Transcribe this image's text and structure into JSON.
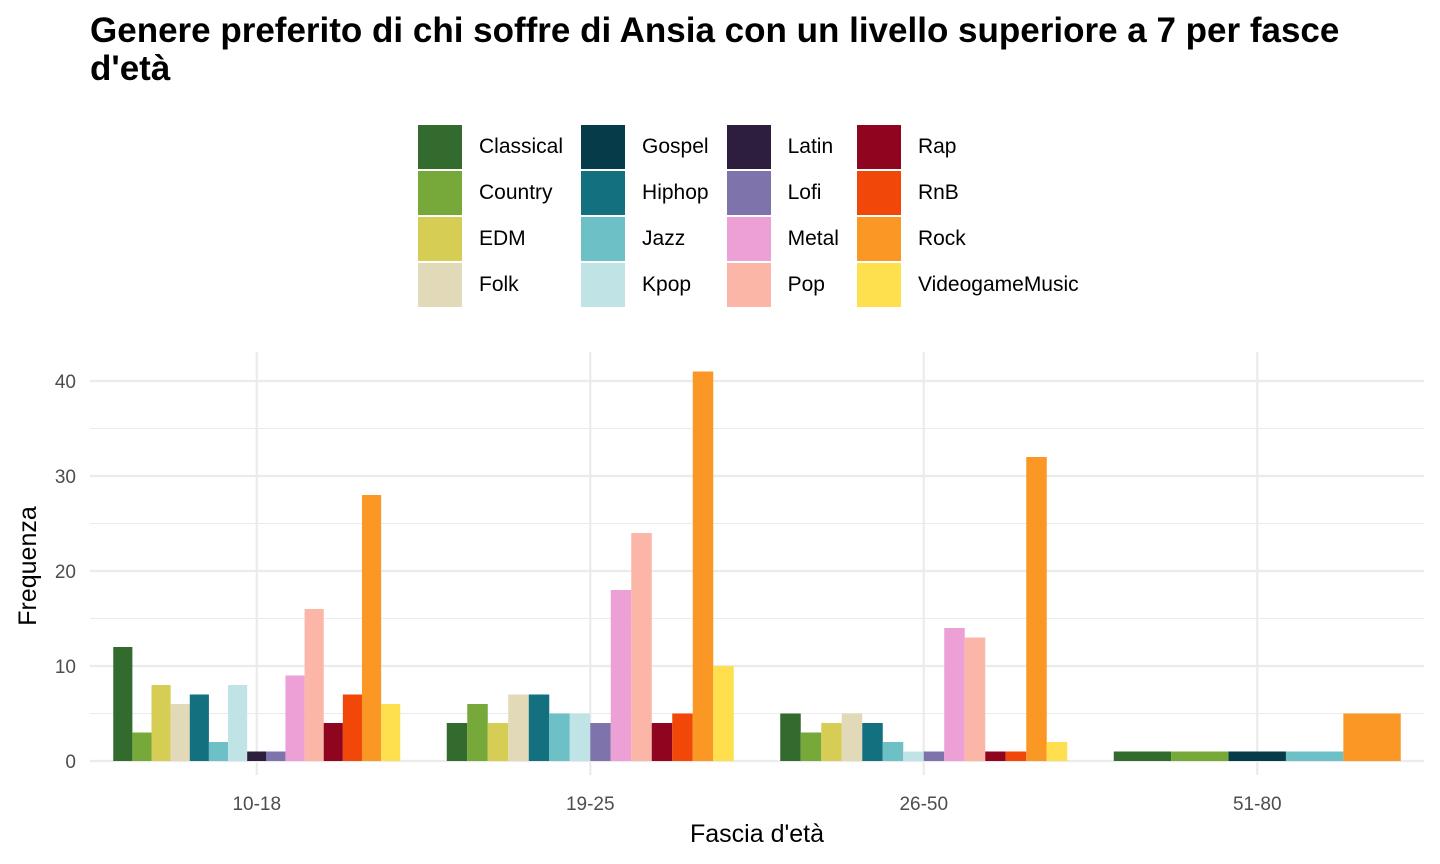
{
  "chart_data": {
    "type": "bar",
    "title": "Genere preferito di chi soffre di Ansia con un livello superiore a 7 per fasce d'età",
    "xlabel": "Fascia d'età",
    "ylabel": "Frequenza",
    "ylim": [
      0,
      42
    ],
    "yticks": [
      0,
      10,
      20,
      30,
      40
    ],
    "grid": true,
    "legend_position": "top",
    "categories": [
      "10-18",
      "19-25",
      "26-50",
      "51-80"
    ],
    "series": [
      {
        "name": "Classical",
        "color": "#336b2f",
        "values": [
          12,
          4,
          5,
          1
        ]
      },
      {
        "name": "Country",
        "color": "#76a83a",
        "values": [
          3,
          6,
          3,
          1
        ]
      },
      {
        "name": "EDM",
        "color": "#d6cd55",
        "values": [
          8,
          4,
          4,
          null
        ]
      },
      {
        "name": "Folk",
        "color": "#e2d9b8",
        "values": [
          6,
          7,
          5,
          null
        ]
      },
      {
        "name": "Gospel",
        "color": "#063b4a",
        "values": [
          null,
          null,
          null,
          1
        ]
      },
      {
        "name": "Hiphop",
        "color": "#13717f",
        "values": [
          7,
          7,
          4,
          null
        ]
      },
      {
        "name": "Jazz",
        "color": "#6cc0c6",
        "values": [
          2,
          5,
          2,
          1
        ]
      },
      {
        "name": "Kpop",
        "color": "#c0e4e5",
        "values": [
          8,
          5,
          1,
          null
        ]
      },
      {
        "name": "Latin",
        "color": "#2d1e3e",
        "values": [
          1,
          null,
          null,
          null
        ]
      },
      {
        "name": "Lofi",
        "color": "#7e74ab",
        "values": [
          1,
          4,
          1,
          null
        ]
      },
      {
        "name": "Metal",
        "color": "#eca0d5",
        "values": [
          9,
          18,
          14,
          null
        ]
      },
      {
        "name": "Pop",
        "color": "#fbb6a7",
        "values": [
          16,
          24,
          13,
          null
        ]
      },
      {
        "name": "Rap",
        "color": "#8f0520",
        "values": [
          4,
          4,
          1,
          null
        ]
      },
      {
        "name": "RnB",
        "color": "#f14809",
        "values": [
          7,
          5,
          1,
          null
        ]
      },
      {
        "name": "Rock",
        "color": "#fb9725",
        "values": [
          28,
          41,
          32,
          5
        ]
      },
      {
        "name": "VideogameMusic",
        "color": "#fedf4d",
        "values": [
          6,
          10,
          2,
          null
        ]
      }
    ]
  }
}
